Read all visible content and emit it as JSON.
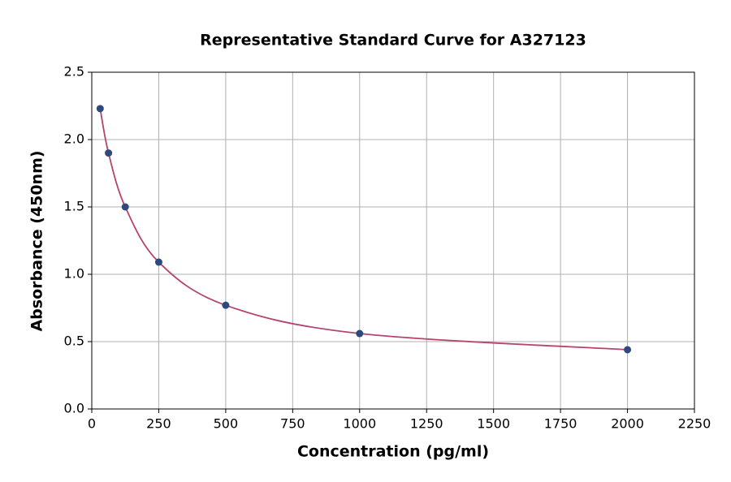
{
  "chart_data": {
    "type": "scatter",
    "title": "Representative Standard Curve for A327123",
    "x_label": "Concentration (pg/ml)",
    "y_label": "Absorbance (450nm)",
    "x": [
      31.25,
      62.5,
      125,
      250,
      500,
      1000,
      2000
    ],
    "series": [
      {
        "values": [
          2.23,
          1.9,
          1.5,
          1.09,
          0.77,
          0.56,
          0.44
        ],
        "color": "#2e4a7d",
        "line_color": "#b5446e"
      }
    ],
    "xlim": [
      0,
      2250
    ],
    "ylim": [
      0,
      2.5
    ],
    "xticks": [
      0,
      250,
      500,
      750,
      1000,
      1250,
      1500,
      1750,
      2000,
      2250
    ],
    "yticks": [
      {
        "value": 0,
        "label": "0.0"
      },
      0.5,
      {
        "value": 1,
        "label": "1.0"
      },
      1.5,
      {
        "value": 2,
        "label": "2.0"
      },
      2.5
    ],
    "grid": true
  }
}
